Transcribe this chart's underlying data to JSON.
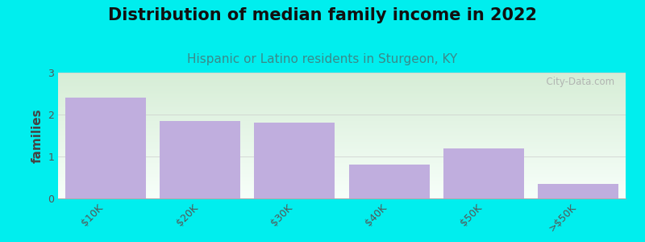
{
  "title": "Distribution of median family income in 2022",
  "subtitle": "Hispanic or Latino residents in Sturgeon, KY",
  "categories": [
    "$10K",
    "$20K",
    "$30K",
    "$40K",
    "$50K",
    ">$50K"
  ],
  "values": [
    2.4,
    1.85,
    1.8,
    0.8,
    1.2,
    0.35
  ],
  "bar_color": "#c0aede",
  "bar_edgecolor": "#c0aede",
  "background_color": "#00eeee",
  "plot_bg_top": "#d8eed8",
  "plot_bg_bottom": "#f8fffe",
  "ylabel": "families",
  "ylim": [
    0,
    3
  ],
  "yticks": [
    0,
    1,
    2,
    3
  ],
  "title_fontsize": 15,
  "subtitle_fontsize": 11,
  "subtitle_color": "#3a8a8a",
  "ylabel_color": "#444444",
  "title_color": "#111111",
  "watermark": "  City-Data.com",
  "watermark_color": "#aaaaaa",
  "tick_label_color": "#555555"
}
